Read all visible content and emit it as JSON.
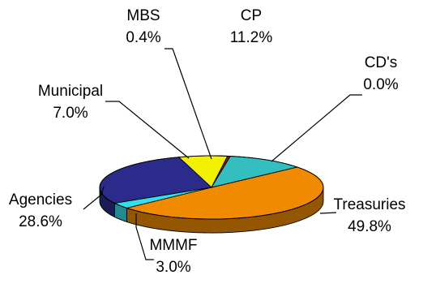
{
  "chart_data": {
    "type": "pie",
    "style": "3d-exploded-none",
    "title": "",
    "slices": [
      {
        "name": "Treasuries",
        "value": 49.8,
        "label": "49.8%",
        "color": "#F08A00"
      },
      {
        "name": "MMMF",
        "value": 3.0,
        "label": "3.0%",
        "color": "#33E0E8"
      },
      {
        "name": "Agencies",
        "value": 28.6,
        "label": "28.6%",
        "color": "#2B2B8C"
      },
      {
        "name": "Municipal",
        "value": 7.0,
        "label": "7.0%",
        "color": "#F2F200"
      },
      {
        "name": "MBS",
        "value": 0.4,
        "label": "0.4%",
        "color": "#8B1A1A"
      },
      {
        "name": "CP",
        "value": 11.2,
        "label": "11.2%",
        "color": "#33BFBF"
      },
      {
        "name": "CD's",
        "value": 0.0,
        "label": "0.0%",
        "color": "#FFFFFF"
      }
    ],
    "legend": "none",
    "label_placement": "outside-with-leader-lines"
  }
}
